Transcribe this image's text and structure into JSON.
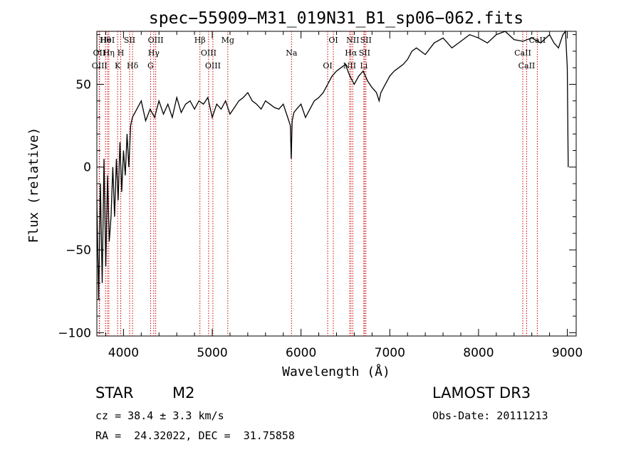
{
  "chart_data": {
    "type": "line",
    "title": "spec−55909−M31_019N31_B1_sp06−062.fits",
    "xlabel": "Wavelength (Å)",
    "ylabel": "Flux (relative)",
    "xlim": [
      3700,
      9100
    ],
    "ylim": [
      -102,
      82
    ],
    "xticks": [
      4000,
      5000,
      6000,
      7000,
      8000,
      9000
    ],
    "xtick_labels": [
      "4000",
      "5000",
      "6000",
      "7000",
      "8000",
      "9000"
    ],
    "yticks": [
      -100,
      -50,
      0,
      50
    ],
    "ytick_labels": [
      "−100",
      "−50",
      "0",
      "50"
    ],
    "series": [
      {
        "name": "spectrum",
        "x": [
          3700,
          3720,
          3740,
          3760,
          3780,
          3800,
          3820,
          3840,
          3860,
          3880,
          3900,
          3920,
          3940,
          3960,
          3980,
          4000,
          4020,
          4040,
          4060,
          4080,
          4100,
          4150,
          4200,
          4250,
          4300,
          4350,
          4400,
          4450,
          4500,
          4550,
          4600,
          4650,
          4700,
          4750,
          4800,
          4850,
          4900,
          4950,
          5000,
          5050,
          5100,
          5150,
          5200,
          5250,
          5300,
          5350,
          5400,
          5450,
          5500,
          5550,
          5600,
          5650,
          5700,
          5750,
          5800,
          5850,
          5880,
          5890,
          5900,
          5920,
          5950,
          6000,
          6050,
          6100,
          6150,
          6200,
          6250,
          6300,
          6350,
          6400,
          6450,
          6500,
          6550,
          6600,
          6650,
          6700,
          6750,
          6800,
          6850,
          6880,
          6900,
          6950,
          7000,
          7050,
          7100,
          7150,
          7200,
          7250,
          7300,
          7400,
          7500,
          7600,
          7700,
          7800,
          7900,
          8000,
          8100,
          8200,
          8300,
          8400,
          8500,
          8600,
          8700,
          8800,
          8850,
          8900,
          8950,
          8980,
          9000,
          9010
        ],
        "values": [
          -20,
          -80,
          -10,
          -70,
          5,
          -60,
          -5,
          -45,
          -30,
          0,
          -30,
          5,
          -20,
          15,
          -15,
          10,
          -5,
          20,
          0,
          25,
          30,
          35,
          40,
          28,
          35,
          30,
          40,
          32,
          38,
          30,
          42,
          33,
          38,
          40,
          35,
          40,
          38,
          42,
          30,
          38,
          35,
          40,
          32,
          36,
          40,
          42,
          45,
          40,
          38,
          35,
          40,
          38,
          36,
          35,
          38,
          30,
          25,
          5,
          28,
          33,
          35,
          38,
          30,
          35,
          40,
          42,
          45,
          50,
          55,
          58,
          60,
          62,
          55,
          50,
          55,
          58,
          52,
          48,
          45,
          40,
          45,
          50,
          55,
          58,
          60,
          62,
          65,
          70,
          72,
          68,
          75,
          78,
          72,
          76,
          80,
          78,
          75,
          80,
          82,
          77,
          76,
          78,
          75,
          80,
          75,
          72,
          80,
          82,
          60,
          0
        ]
      }
    ],
    "lines": [
      {
        "name": "Hθ",
        "x": 3797
      },
      {
        "name": "OII",
        "x": 3727
      },
      {
        "name": "OIII",
        "x": 3730
      },
      {
        "name": "HeI",
        "x": 3820
      },
      {
        "name": "Hη",
        "x": 3835
      },
      {
        "name": "K",
        "x": 3934
      },
      {
        "name": "SII",
        "x": 4069
      },
      {
        "name": "H",
        "x": 3969
      },
      {
        "name": "Hδ",
        "x": 4102
      },
      {
        "name": "OIII",
        "x": 4363
      },
      {
        "name": "Hγ",
        "x": 4341
      },
      {
        "name": "G",
        "x": 4305
      },
      {
        "name": "Hβ",
        "x": 4861
      },
      {
        "name": "OIII",
        "x": 4959
      },
      {
        "name": "OIII",
        "x": 5007
      },
      {
        "name": "Mg",
        "x": 5175
      },
      {
        "name": "Na",
        "x": 5893
      },
      {
        "name": "OI",
        "x": 6300
      },
      {
        "name": "OI",
        "x": 6364
      },
      {
        "name": "Hα",
        "x": 6563
      },
      {
        "name": "NII",
        "x": 6548
      },
      {
        "name": "NII",
        "x": 6583
      },
      {
        "name": "SII",
        "x": 6716
      },
      {
        "name": "Li",
        "x": 6708
      },
      {
        "name": "SII",
        "x": 6731
      },
      {
        "name": "CaII",
        "x": 8498
      },
      {
        "name": "CaII",
        "x": 8542
      },
      {
        "name": "CaII",
        "x": 8662
      }
    ]
  },
  "info": {
    "class": "STAR",
    "subclass": "M2",
    "survey": "LAMOST DR3",
    "cz": "cz = 38.4 ± 3.3 km/s",
    "obs_date": "Obs-Date: 20111213",
    "radec": "RA =  24.32022, DEC =  31.75858"
  }
}
